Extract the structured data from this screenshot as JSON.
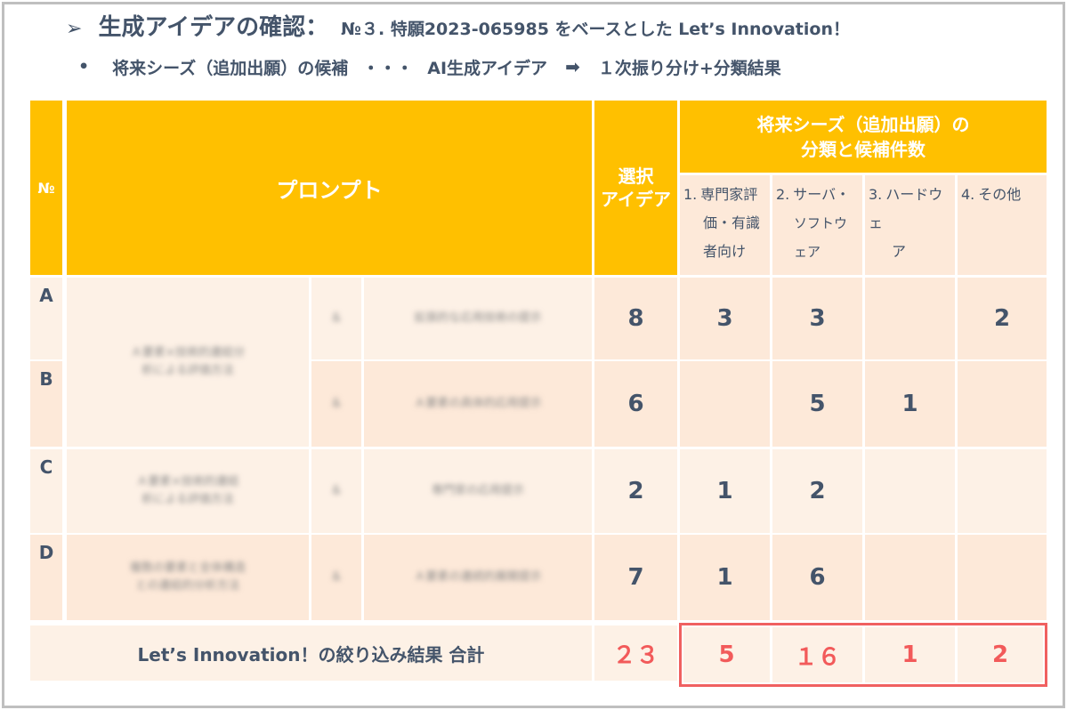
{
  "header": {
    "arrow": "➢",
    "title": "生成アイデアの確認：",
    "subtitle": "№３. 特願2023-065985 をベースとした Let’s Innovation！"
  },
  "subheader": {
    "bullet": "•",
    "text1": "将来シーズ（追加出願）の候補",
    "dots": "・・・",
    "text2": "AI生成アイデア",
    "arrow": "➡",
    "text3": "１次振り分け+分類結果"
  },
  "table": {
    "col_no": "№",
    "col_prompt": "プロンプト",
    "col_selected_line1": "選択",
    "col_selected_line2": "アイデア",
    "col_group_line1": "将来シーズ（追加出願）の",
    "col_group_line2": "分類と候補件数",
    "categories": [
      {
        "num": "1.",
        "lines": [
          "専門家評",
          "価・有識",
          "者向け"
        ]
      },
      {
        "num": "2.",
        "lines": [
          "サーバ・",
          "ソフトウェア"
        ]
      },
      {
        "num": "3.",
        "lines": [
          "ハードウェ",
          "ア"
        ]
      },
      {
        "num": "4.",
        "lines": [
          "その他"
        ]
      }
    ],
    "rows": [
      {
        "label": "A",
        "selected": "8",
        "c1": "3",
        "c2": "3",
        "c3": "",
        "c4": "2"
      },
      {
        "label": "B",
        "selected": "6",
        "c1": "",
        "c2": "5",
        "c3": "1",
        "c4": ""
      },
      {
        "label": "C",
        "selected": "2",
        "c1": "1",
        "c2": "2",
        "c3": "",
        "c4": ""
      },
      {
        "label": "D",
        "selected": "7",
        "c1": "1",
        "c2": "6",
        "c3": "",
        "c4": ""
      }
    ],
    "blurred_prompt": {
      "ab_main_1": "Ａ要素×技術的連結分",
      "ab_main_2": "析による評価方法",
      "c_main_1": "Ａ要素×技術的連結",
      "c_main_2": "析による評価方法",
      "d_main_1": "複数の要素と全体構造",
      "d_main_2": "との連結的分析方法",
      "marker": "＆",
      "a_sub": "拡張的な応用技術の提示",
      "b_sub": "Ａ要素の具体的応用提示",
      "c_sub": "専門家の応用提示",
      "d_sub": "Ａ要素の連続的展開提示"
    },
    "total_label": "Let’s Innovation！の絞り込み結果 合計",
    "total_selected": "２３",
    "total_c1": "5",
    "total_c2": "１６",
    "total_c3": "1",
    "total_c4": "2"
  }
}
